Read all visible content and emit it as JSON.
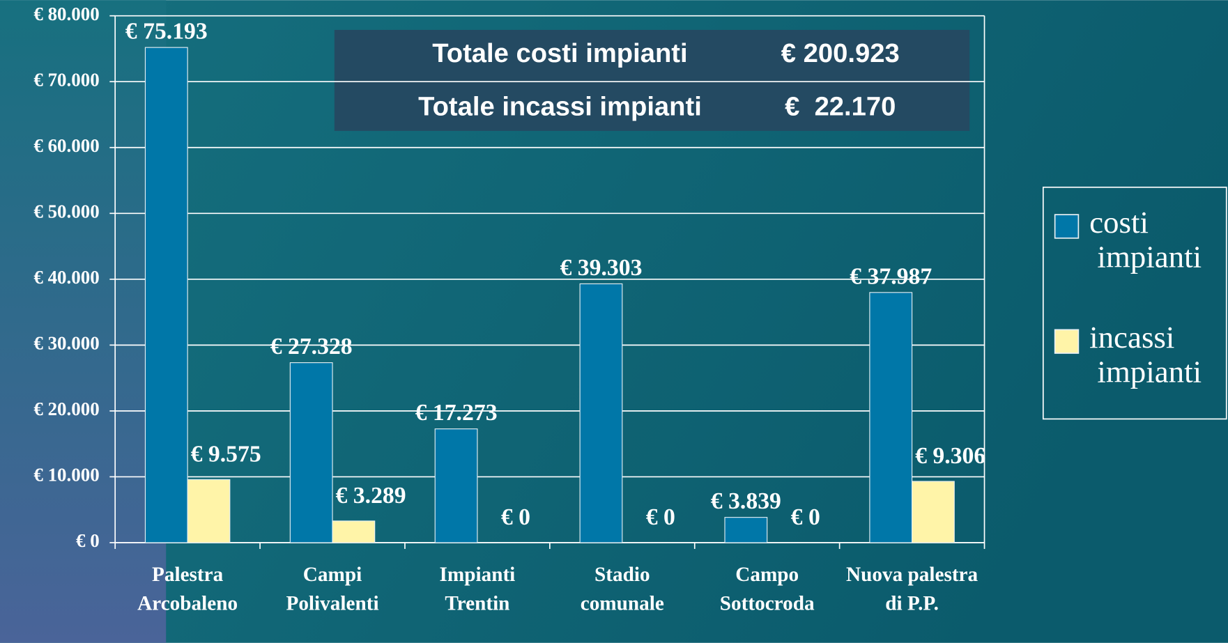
{
  "chart_data": {
    "type": "bar",
    "categories": [
      "Palestra Arcobaleno",
      "Campi Polivalenti",
      "Impianti Trentin",
      "Stadio comunale",
      "Campo Sottocroda",
      "Nuova palestra di P.P."
    ],
    "series": [
      {
        "name": "costi impianti",
        "color": "#0077a8",
        "values": [
          75193,
          27328,
          17273,
          39303,
          3839,
          37987
        ],
        "value_labels": [
          "€ 75.193",
          "€ 27.328",
          "€ 17.273",
          "€ 39.303",
          "€ 3.839",
          "€ 37.987"
        ]
      },
      {
        "name": "incassi impianti",
        "color": "#fff4a8",
        "values": [
          9575,
          3289,
          0,
          0,
          0,
          9306
        ],
        "value_labels": [
          "€ 9.575",
          "€ 3.289",
          "€ 0",
          "€ 0",
          "€ 0",
          "€ 9.306"
        ]
      }
    ],
    "ylim": [
      0,
      80000
    ],
    "yticks": [
      {
        "value": 0,
        "label": "€ 0"
      },
      {
        "value": 10000,
        "label": "€ 10.000"
      },
      {
        "value": 20000,
        "label": "€ 20.000"
      },
      {
        "value": 30000,
        "label": "€ 30.000"
      },
      {
        "value": 40000,
        "label": "€ 40.000"
      },
      {
        "value": 50000,
        "label": "€ 50.000"
      },
      {
        "value": 60000,
        "label": "€ 60.000"
      },
      {
        "value": 70000,
        "label": "€ 70.000"
      },
      {
        "value": 80000,
        "label": "€ 80.000"
      }
    ],
    "grid": true,
    "legend": "right",
    "annotations": [
      {
        "label": "Totale costi impianti",
        "value": "€ 200.923"
      },
      {
        "label": "Totale incassi impianti",
        "value": "€  22.170"
      }
    ]
  }
}
